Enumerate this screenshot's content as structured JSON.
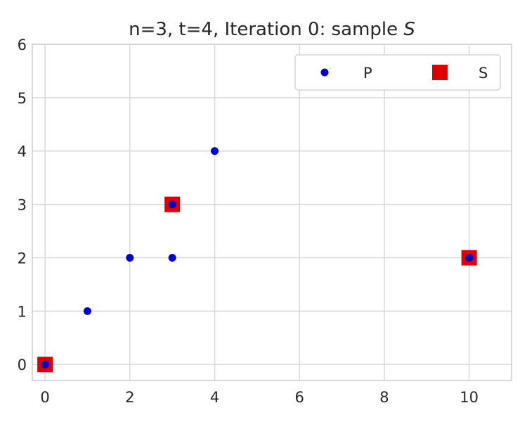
{
  "chart_data": {
    "type": "scatter",
    "title_main": "n=3, t=4, Iteration 0: sample ",
    "title_italic": "S",
    "xlabel": "",
    "ylabel": "",
    "xlim": [
      -0.3,
      11
    ],
    "ylim": [
      -0.3,
      6
    ],
    "xticks": [
      0,
      2,
      4,
      6,
      8,
      10
    ],
    "yticks": [
      0,
      1,
      2,
      3,
      4,
      5,
      6
    ],
    "grid": true,
    "legend_position": "top-right",
    "series": [
      {
        "name": "P",
        "marker": "circle",
        "color": "#0000cc",
        "points": [
          [
            0,
            0
          ],
          [
            1,
            1
          ],
          [
            2,
            2
          ],
          [
            3,
            2
          ],
          [
            3,
            3
          ],
          [
            4,
            4
          ],
          [
            10,
            2
          ]
        ]
      },
      {
        "name": "S",
        "marker": "square",
        "color": "#dd0000",
        "points": [
          [
            0,
            0
          ],
          [
            3,
            3
          ],
          [
            10,
            2
          ]
        ]
      }
    ]
  }
}
